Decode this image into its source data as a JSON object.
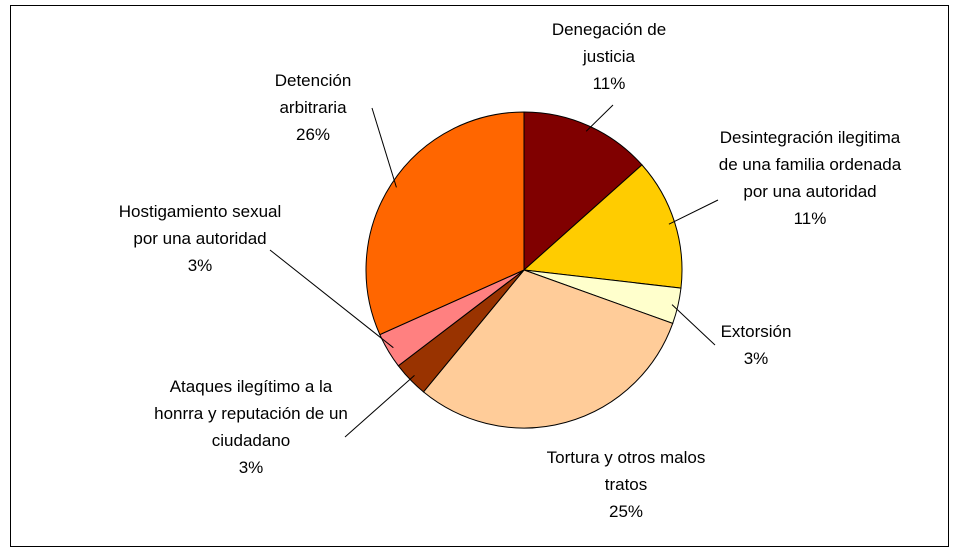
{
  "chart_data": {
    "type": "pie",
    "categories": [
      "Denegación de justicia",
      "Desintegración ilegitima de una familia ordenada por una autoridad",
      "Extorsión",
      "Tortura y otros malos tratos",
      "Ataques ilegítimo a la honrra y reputación de un ciudadano",
      "Hostigamiento sexual por una autoridad",
      "Detención arbitraria"
    ],
    "values": [
      11,
      11,
      3,
      25,
      3,
      3,
      26
    ],
    "value_labels": [
      "11%",
      "11%",
      "3%",
      "25%",
      "3%",
      "3%",
      "26%"
    ],
    "colors": [
      "#800000",
      "#ffcc00",
      "#ffffcc",
      "#ffcc99",
      "#993300",
      "#ff8080",
      "#ff6600"
    ]
  }
}
